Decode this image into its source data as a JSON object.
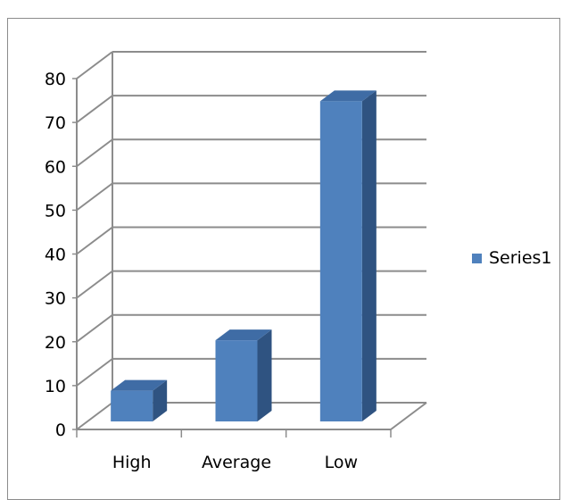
{
  "chart_data": {
    "type": "bar",
    "style": "3d-column",
    "categories": [
      "High",
      "Average",
      "Low"
    ],
    "series": [
      {
        "name": "Series1",
        "values": [
          7,
          18.5,
          73
        ]
      }
    ],
    "ylim": [
      0,
      80
    ],
    "yticks": [
      "0",
      "10",
      "20",
      "30",
      "40",
      "50",
      "60",
      "70",
      "80"
    ],
    "grid": true,
    "legend": "right",
    "colors": {
      "front": "#4f81bd",
      "side": "#2f5381",
      "top": "#3f6ca5",
      "grid": "#8c8c8c"
    }
  }
}
